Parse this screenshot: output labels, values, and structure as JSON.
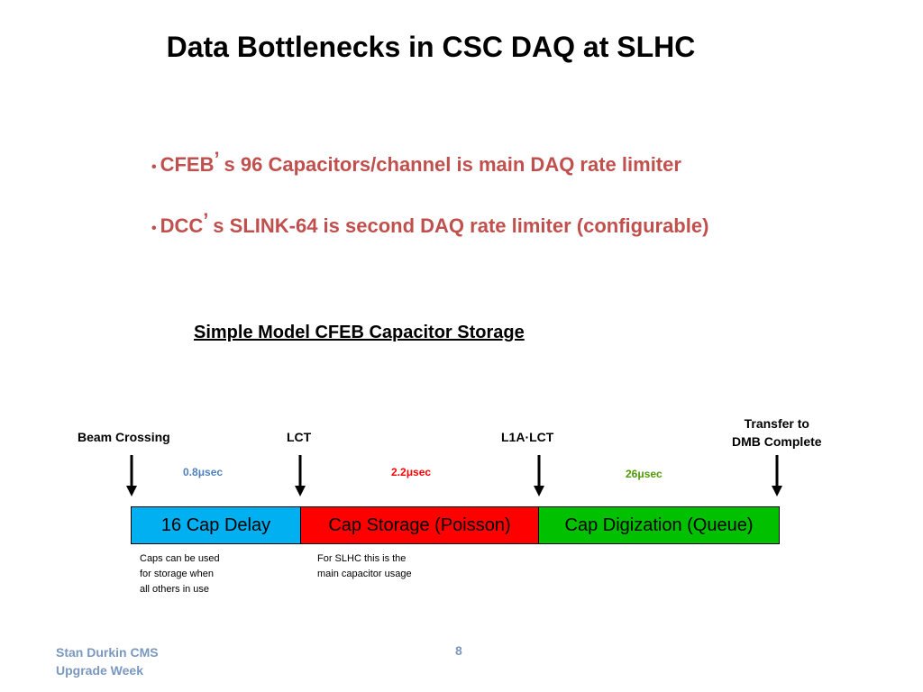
{
  "slide": {
    "title": "Data Bottlenecks in CSC DAQ at SLHC",
    "bullets": [
      {
        "pre": "CFEB",
        "apos": "’",
        "post": " s 96 Capacitors/channel is main DAQ rate limiter"
      },
      {
        "pre": "DCC",
        "apos": "’",
        "post": " s SLINK-64 is second DAQ rate limiter (configurable)"
      }
    ],
    "bullet_symbol": "•",
    "bullet_color": "#c0504d"
  },
  "model": {
    "title": "Simple Model CFEB Capacitor Storage",
    "events": {
      "beam": "Beam Crossing",
      "lct": "LCT",
      "l1a": "L1A·LCT",
      "transfer_line1": "Transfer to",
      "transfer_line2": "DMB Complete"
    },
    "durations": [
      {
        "value": "0.8",
        "unit": "μsec",
        "color": "#4f81bd"
      },
      {
        "value": "2.2",
        "unit": "μsec",
        "color": "#ff0000"
      },
      {
        "value": "26",
        "unit": "μsec",
        "color": "#4e9a06"
      }
    ],
    "stages": [
      {
        "label": "16 Cap  Delay",
        "color": "#00b0f0"
      },
      {
        "label": "Cap Storage (Poisson)",
        "color": "#ff0000"
      },
      {
        "label": "Cap Digization (Queue)",
        "color": "#00c000"
      }
    ],
    "notes": {
      "delay": [
        "Caps can be used",
        "for storage when",
        "all others in use"
      ],
      "storage": [
        "For SLHC this is the",
        "main capacitor usage"
      ]
    }
  },
  "footer": {
    "author_line1": "Stan Durkin CMS",
    "author_line2": "Upgrade Week",
    "page_number": "8"
  }
}
